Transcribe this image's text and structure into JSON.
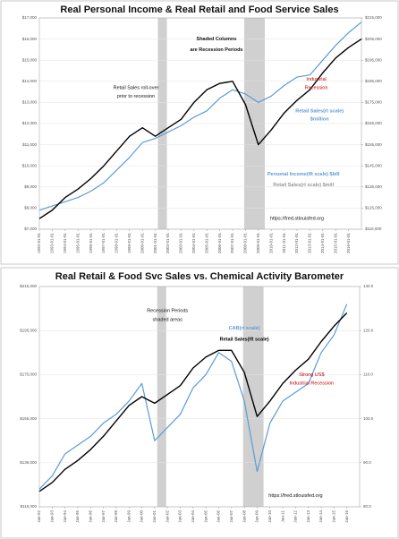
{
  "chart_data": [
    {
      "type": "line",
      "title": "Real Personal Income & Real Retail and Food Service Sales",
      "x": [
        1992,
        1993,
        1994,
        1995,
        1996,
        1997,
        1998,
        1999,
        2000,
        2001,
        2002,
        2003,
        2004,
        2005,
        2006,
        2007,
        2008,
        2009,
        2010,
        2011,
        2012,
        2013,
        2014,
        2015,
        2016,
        2017
      ],
      "series": [
        {
          "name": "Personal Income(lft scale) $bill",
          "color": "#5b9bd5",
          "axis": "y",
          "values": [
            7900,
            8100,
            8300,
            8500,
            8800,
            9200,
            9800,
            10400,
            11100,
            11300,
            11600,
            11900,
            12300,
            12600,
            13200,
            13600,
            13400,
            13000,
            13300,
            13800,
            14200,
            14300,
            15000,
            15700,
            16300,
            16800
          ]
        },
        {
          "name": "Retail Sales(rt scale) $mill",
          "color": "#000000",
          "axis": "y2",
          "values": [
            120000,
            124000,
            130000,
            134000,
            139000,
            145000,
            152000,
            159000,
            163000,
            159000,
            163000,
            167000,
            175000,
            181000,
            184000,
            185000,
            174000,
            155000,
            162000,
            170000,
            176000,
            181000,
            189000,
            196000,
            201000,
            205000
          ]
        }
      ],
      "xlim": [
        1992,
        2017
      ],
      "xticks": [
        {
          "value": 1992,
          "label": "1992-01-01"
        },
        {
          "value": 1993,
          "label": "1993-01-01"
        },
        {
          "value": 1994,
          "label": "1994-01-01"
        },
        {
          "value": 1995,
          "label": "1995-01-01"
        },
        {
          "value": 1996,
          "label": "1996-01-01"
        },
        {
          "value": 1997,
          "label": "1997-01-01"
        },
        {
          "value": 1998,
          "label": "1998-01-01"
        },
        {
          "value": 1999,
          "label": "1999-01-01"
        },
        {
          "value": 2000,
          "label": "2000-01-01"
        },
        {
          "value": 2001,
          "label": "2001-01-01"
        },
        {
          "value": 2002,
          "label": "2002-01-01"
        },
        {
          "value": 2003,
          "label": "2003-01-01"
        },
        {
          "value": 2004,
          "label": "2004-01-01"
        },
        {
          "value": 2005,
          "label": "2005-01-01"
        },
        {
          "value": 2006,
          "label": "2006-01-01"
        },
        {
          "value": 2007,
          "label": "2007-01-01"
        },
        {
          "value": 2008,
          "label": "2008-01-01"
        },
        {
          "value": 2009,
          "label": "2009-01-01"
        },
        {
          "value": 2010,
          "label": "2010-01-01"
        },
        {
          "value": 2011,
          "label": "2011-01-01"
        },
        {
          "value": 2012,
          "label": "2012-01-01"
        },
        {
          "value": 2013,
          "label": "2013-01-01"
        },
        {
          "value": 2014,
          "label": "2014-01-01"
        },
        {
          "value": 2015,
          "label": "2015-01-01"
        },
        {
          "value": 2016,
          "label": "2016-01-01"
        }
      ],
      "ylim": [
        7000,
        17000
      ],
      "yticks": [
        {
          "value": 7000,
          "label": "$7,000"
        },
        {
          "value": 8000,
          "label": "$8,000"
        },
        {
          "value": 9000,
          "label": "$9,000"
        },
        {
          "value": 10000,
          "label": "$10,000"
        },
        {
          "value": 11000,
          "label": "$11,000"
        },
        {
          "value": 12000,
          "label": "$12,000"
        },
        {
          "value": 13000,
          "label": "$13,000"
        },
        {
          "value": 14000,
          "label": "$14,000"
        },
        {
          "value": 15000,
          "label": "$15,000"
        },
        {
          "value": 16000,
          "label": "$16,000"
        },
        {
          "value": 17000,
          "label": "$17,000"
        }
      ],
      "y2lim": [
        115000,
        215000
      ],
      "y2ticks": [
        {
          "value": 115000,
          "label": "$115,000"
        },
        {
          "value": 125000,
          "label": "$125,000"
        },
        {
          "value": 135000,
          "label": "$135,000"
        },
        {
          "value": 145000,
          "label": "$145,000"
        },
        {
          "value": 155000,
          "label": "$155,000"
        },
        {
          "value": 165000,
          "label": "$165,000"
        },
        {
          "value": 175000,
          "label": "$175,000"
        },
        {
          "value": 185000,
          "label": "$185,000"
        },
        {
          "value": 195000,
          "label": "$195,000"
        },
        {
          "value": 205000,
          "label": "$205,000"
        },
        {
          "value": 215000,
          "label": "$215,000"
        }
      ],
      "grid": true,
      "recessions": [
        [
          2001.2,
          2001.9
        ],
        [
          2007.9,
          2009.5
        ]
      ],
      "annotations": [
        "Shaded Columns",
        "are Recession Periods",
        "Retail Sales roll-over",
        "prior to recession",
        "Industrial",
        "Recession",
        "Retail Sales(rt scale)",
        "$million",
        "https://fred.stlouisfed.org"
      ]
    },
    {
      "type": "line",
      "title": "Real Retail & Food Svc Sales vs. Chemical Activity Barometer",
      "x": [
        1992,
        1993,
        1994,
        1995,
        1996,
        1997,
        1998,
        1999,
        2000,
        2001,
        2002,
        2003,
        2004,
        2005,
        2006,
        2007,
        2008,
        2009,
        2010,
        2011,
        2012,
        2013,
        2014,
        2015,
        2016
      ],
      "series": [
        {
          "name": "CAB(rt scale)",
          "color": "#5b9bd5",
          "axis": "y2",
          "values": [
            84,
            87,
            92,
            94,
            96,
            99,
            101,
            104,
            108,
            95,
            98,
            101,
            107,
            110,
            115,
            113,
            104,
            88,
            99,
            104,
            106,
            108,
            115,
            119,
            126
          ]
        },
        {
          "name": "Retail Sales(lft scale)",
          "color": "#000000",
          "axis": "y",
          "values": [
            122000,
            126000,
            132000,
            136000,
            141000,
            147000,
            154000,
            161000,
            165000,
            162000,
            166000,
            170000,
            178000,
            183000,
            186000,
            186000,
            176000,
            156000,
            163000,
            171000,
            177000,
            182000,
            190000,
            197000,
            203000
          ]
        }
      ],
      "xlim": [
        1992,
        2017
      ],
      "xticks": [
        {
          "value": 1992,
          "label": "Jan-92"
        },
        {
          "value": 1993,
          "label": "Jan-93"
        },
        {
          "value": 1994,
          "label": "Jan-94"
        },
        {
          "value": 1995,
          "label": "Jan-95"
        },
        {
          "value": 1996,
          "label": "Jan-96"
        },
        {
          "value": 1997,
          "label": "Jan-97"
        },
        {
          "value": 1998,
          "label": "Jan-98"
        },
        {
          "value": 1999,
          "label": "Jan-99"
        },
        {
          "value": 2000,
          "label": "Jan-00"
        },
        {
          "value": 2001,
          "label": "Jan-01"
        },
        {
          "value": 2002,
          "label": "Jan-02"
        },
        {
          "value": 2003,
          "label": "Jan-03"
        },
        {
          "value": 2004,
          "label": "Jan-04"
        },
        {
          "value": 2005,
          "label": "Jan-05"
        },
        {
          "value": 2006,
          "label": "Jan-06"
        },
        {
          "value": 2007,
          "label": "Jan-07"
        },
        {
          "value": 2008,
          "label": "Jan-08"
        },
        {
          "value": 2009,
          "label": "Jan-09"
        },
        {
          "value": 2010,
          "label": "Jan-10"
        },
        {
          "value": 2011,
          "label": "Jan-11"
        },
        {
          "value": 2012,
          "label": "Jan-12"
        },
        {
          "value": 2013,
          "label": "Jan-13"
        },
        {
          "value": 2014,
          "label": "Jan-14"
        },
        {
          "value": 2015,
          "label": "Jan-15"
        },
        {
          "value": 2016,
          "label": "Jan-16"
        }
      ],
      "ylim": [
        115000,
        215000
      ],
      "yticks": [
        {
          "value": 115000,
          "label": "$115,000"
        },
        {
          "value": 135000,
          "label": "$135,000"
        },
        {
          "value": 155000,
          "label": "$155,000"
        },
        {
          "value": 175000,
          "label": "$175,000"
        },
        {
          "value": 195000,
          "label": "$195,000"
        },
        {
          "value": 215000,
          "label": "$215,000"
        }
      ],
      "y2lim": [
        80,
        130
      ],
      "y2ticks": [
        {
          "value": 80,
          "label": "80.0"
        },
        {
          "value": 90,
          "label": "90.0"
        },
        {
          "value": 100,
          "label": "100.0"
        },
        {
          "value": 110,
          "label": "110.0"
        },
        {
          "value": 120,
          "label": "120.0"
        },
        {
          "value": 130,
          "label": "130.0"
        }
      ],
      "grid": true,
      "recessions": [
        [
          2001.2,
          2001.9
        ],
        [
          2007.9,
          2009.5
        ]
      ],
      "annotations": [
        "Recession Periods",
        "shaded areas",
        "Strong US$",
        "Industrial Recession",
        "https://fred.stlouisfed.org"
      ]
    }
  ]
}
